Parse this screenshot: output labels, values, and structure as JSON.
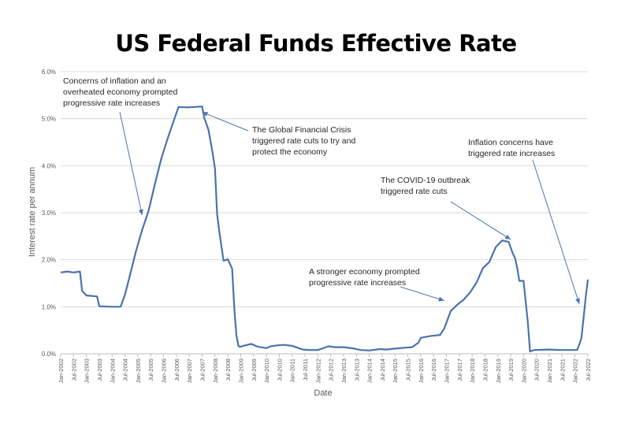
{
  "chart_data": {
    "type": "line",
    "title": "US Federal Funds Effective Rate",
    "xlabel": "Date",
    "ylabel": "Interest rate per annum",
    "ylim": [
      0,
      6
    ],
    "yticks": [
      "0.0%",
      "1.0%",
      "2.0%",
      "3.0%",
      "4.0%",
      "5.0%",
      "6.0%"
    ],
    "xticks": [
      "Jan-2002",
      "Jul-2002",
      "Jan-2003",
      "Jul-2003",
      "Jan-2004",
      "Jul-2004",
      "Jan-2005",
      "Jul-2005",
      "Jan-2006",
      "Jul-2006",
      "Jan-2007",
      "Jul-2007",
      "Jan-2008",
      "Jul-2008",
      "Jan-2009",
      "Jul-2009",
      "Jan-2010",
      "Jul-2010",
      "Jan-2011",
      "Jul-2011",
      "Jan-2012",
      "Jul-2012",
      "Jan-2013",
      "Jul-2013",
      "Jan-2014",
      "Jul-2014",
      "Jan-2015",
      "Jul-2015",
      "Jan-2016",
      "Jul-2016",
      "Jan-2017",
      "Jul-2017",
      "Jan-2018",
      "Jul-2018",
      "Jan-2019",
      "Jul-2019",
      "Jan-2020",
      "Jul-2020",
      "Jan-2021",
      "Jul-2021",
      "Jan-2022",
      "Jul-2022"
    ],
    "grid": true,
    "line_color": "#4a72b0",
    "series": [
      {
        "x": [
          "2002-01",
          "2002-04",
          "2002-07",
          "2002-10",
          "2002-11",
          "2003-01",
          "2003-06",
          "2003-07",
          "2004-01",
          "2004-05",
          "2004-07",
          "2004-09",
          "2004-12",
          "2005-03",
          "2005-06",
          "2005-09",
          "2005-12",
          "2006-03",
          "2006-06",
          "2006-08",
          "2006-12",
          "2007-07",
          "2007-08",
          "2007-10",
          "2007-12",
          "2008-01",
          "2008-02",
          "2008-03",
          "2008-05",
          "2008-07",
          "2008-09",
          "2008-10",
          "2008-11",
          "2008-12",
          "2009-01",
          "2009-03",
          "2009-06",
          "2009-09",
          "2010-01",
          "2010-03",
          "2010-06",
          "2010-09",
          "2011-01",
          "2011-06",
          "2011-09",
          "2012-01",
          "2012-06",
          "2012-09",
          "2013-01",
          "2013-06",
          "2013-09",
          "2014-01",
          "2014-06",
          "2014-09",
          "2015-01",
          "2015-06",
          "2015-09",
          "2015-12",
          "2016-01",
          "2016-06",
          "2016-10",
          "2016-12",
          "2017-03",
          "2017-06",
          "2017-09",
          "2017-12",
          "2018-03",
          "2018-06",
          "2018-09",
          "2018-12",
          "2019-03",
          "2019-06",
          "2019-08",
          "2019-09",
          "2019-10",
          "2019-11",
          "2020-01",
          "2020-03",
          "2020-04",
          "2020-06",
          "2021-01",
          "2021-06",
          "2021-12",
          "2022-02",
          "2022-03",
          "2022-04",
          "2022-05",
          "2022-06",
          "2022-07"
        ],
        "y": [
          1.73,
          1.75,
          1.73,
          1.75,
          1.34,
          1.24,
          1.22,
          1.01,
          1.0,
          1.0,
          1.26,
          1.61,
          2.16,
          2.63,
          3.04,
          3.62,
          4.16,
          4.59,
          4.99,
          5.25,
          5.24,
          5.26,
          5.02,
          4.76,
          4.24,
          3.94,
          2.98,
          2.61,
          1.98,
          2.01,
          1.81,
          0.97,
          0.39,
          0.16,
          0.15,
          0.18,
          0.21,
          0.15,
          0.12,
          0.16,
          0.18,
          0.19,
          0.17,
          0.09,
          0.08,
          0.08,
          0.16,
          0.14,
          0.14,
          0.11,
          0.08,
          0.07,
          0.1,
          0.09,
          0.11,
          0.13,
          0.14,
          0.24,
          0.34,
          0.38,
          0.4,
          0.54,
          0.91,
          1.04,
          1.15,
          1.3,
          1.51,
          1.82,
          1.95,
          2.27,
          2.41,
          2.38,
          2.13,
          2.04,
          1.83,
          1.55,
          1.55,
          0.65,
          0.05,
          0.08,
          0.09,
          0.08,
          0.08,
          0.08,
          0.2,
          0.33,
          0.77,
          1.21,
          1.58
        ]
      }
    ],
    "annotations": [
      {
        "lines": [
          "Concerns of inflation and an",
          "overheated economy prompted",
          "progressive rate increases"
        ],
        "arrow_to": {
          "x": "2005-03",
          "y": 2.95
        }
      },
      {
        "lines": [
          "The Global Financial Crisis",
          "triggered rate cuts to try and",
          "protect the economy"
        ],
        "arrow_to": {
          "x": "2007-07",
          "y": 5.14
        }
      },
      {
        "lines": [
          "The COVID-19 outbreak",
          "triggered rate cuts"
        ],
        "arrow_to": {
          "x": "2019-07",
          "y": 2.43
        }
      },
      {
        "lines": [
          "Inflation concerns have",
          "triggered rate increases"
        ],
        "arrow_to": {
          "x": "2022-03",
          "y": 1.06
        }
      },
      {
        "lines": [
          "A stronger economy prompted",
          "progressive rate increases"
        ],
        "arrow_to": {
          "x": "2016-12",
          "y": 1.13
        }
      }
    ]
  }
}
